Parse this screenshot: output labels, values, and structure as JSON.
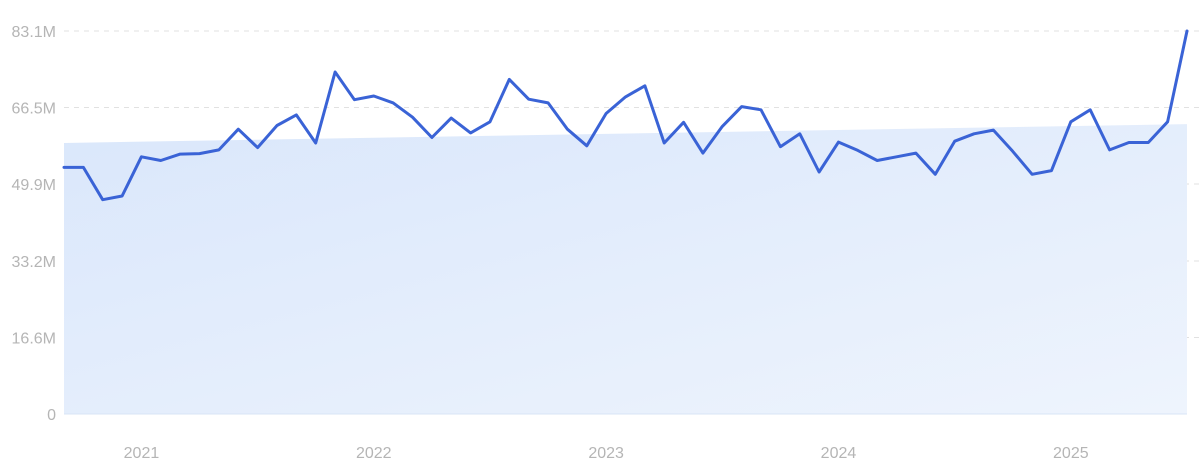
{
  "chart_data": {
    "type": "line",
    "grid": true,
    "y_ticks": [
      "0",
      "16.6M",
      "33.2M",
      "49.9M",
      "66.5M",
      "83.1M"
    ],
    "y_tick_values": [
      0,
      16.6,
      33.2,
      49.9,
      66.5,
      83.1
    ],
    "x_ticks": [
      "2021",
      "2022",
      "2023",
      "2024",
      "2025"
    ],
    "ylim": [
      0,
      83.1
    ],
    "x_range": [
      "2020-09",
      "2025-07"
    ],
    "series": [
      {
        "color": "#3a63d6",
        "x": [
          "2020-09",
          "2020-10",
          "2020-11",
          "2020-12",
          "2021-01",
          "2021-02",
          "2021-03",
          "2021-04",
          "2021-05",
          "2021-06",
          "2021-07",
          "2021-08",
          "2021-09",
          "2021-10",
          "2021-11",
          "2021-12",
          "2022-01",
          "2022-02",
          "2022-03",
          "2022-04",
          "2022-05",
          "2022-06",
          "2022-07",
          "2022-08",
          "2022-09",
          "2022-10",
          "2022-11",
          "2022-12",
          "2023-01",
          "2023-02",
          "2023-03",
          "2023-04",
          "2023-05",
          "2023-06",
          "2023-07",
          "2023-08",
          "2023-09",
          "2023-10",
          "2023-11",
          "2023-12",
          "2024-01",
          "2024-02",
          "2024-03",
          "2024-04",
          "2024-05",
          "2024-06",
          "2024-07",
          "2024-08",
          "2024-09",
          "2024-10",
          "2024-11",
          "2024-12",
          "2025-01",
          "2025-02",
          "2025-03",
          "2025-04",
          "2025-05",
          "2025-06",
          "2025-07"
        ],
        "values": [
          53.5,
          53.5,
          46.5,
          47.3,
          55.8,
          55.0,
          56.4,
          56.5,
          57.3,
          61.8,
          57.8,
          62.6,
          64.9,
          58.8,
          74.2,
          68.2,
          69.0,
          67.5,
          64.4,
          60.0,
          64.2,
          61.0,
          63.4,
          72.6,
          68.3,
          67.5,
          61.8,
          58.2,
          65.2,
          68.8,
          71.2,
          58.8,
          63.3,
          56.6,
          62.4,
          66.7,
          66.0,
          58.0,
          60.8,
          52.5,
          59.0,
          57.2,
          55.0,
          55.8,
          56.6,
          52.0,
          59.2,
          60.8,
          61.6,
          57.0,
          52.0,
          52.8,
          63.4,
          66.0,
          57.3,
          58.9,
          58.9,
          63.4,
          83.1
        ]
      }
    ],
    "trend_band": {
      "start": 58.8,
      "end": 62.9,
      "color": "#dbe8fb"
    }
  }
}
